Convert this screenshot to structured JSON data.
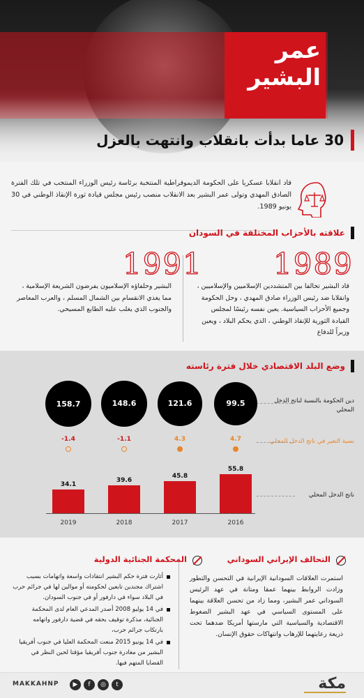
{
  "hero": {
    "name_line1": "عمر",
    "name_line2": "البشير",
    "title": "30 عاما بدأت بانقلاب وانتهت بالعزل"
  },
  "intro": {
    "text": "قاد انقلابا عسكريا على الحكومة الديموقراطية المنتخبة برئاسة رئيس الوزراء المنتخب في تلك الفترة الصادق المهدي وتولى عمر البشير بعد الانقلاب منصب رئيس مجلس قيادة ثورة الإنقاذ الوطني في 30 يونيو 1989."
  },
  "parties": {
    "heading": "علاقته بالأحزاب المختلفة في السودان",
    "y1989": "1989",
    "y1989_text": "قاد البشير تحالفا بين المتشددين الإسلاميين والإسلاميين ، وانقلابا ضد رئيس الوزراء صادق المهدي ، وحل الحكومة وجميع الأحزاب السياسية. يعين نفسه رئيسًا لمجلس القيادة الثورية للإنقاذ الوطني ، الذي يحكم البلاد ، ويعين وزيراً للدفاع",
    "y1991": "1991",
    "y1991_text": "البشير وحلفاؤه الإسلاميون يفرضون الشريعة الإسلامية ، مما يغذي الانقسام بين الشمال المسلم ، والعرب المعاصر والجنوب الذي يغلب عليه الطابع المسيحي."
  },
  "economy": {
    "heading": "وضع البلد الاقتصادي خلال فترة رئاسته",
    "debt_label": "دين الحكومة بالنسبة لناتج الدخل المحلي",
    "change_label": "نسبة التغير في ناتج الدخل المحلي",
    "gdp_label": "ناتج الدخل المحلي"
  },
  "chart_data": {
    "type": "bar",
    "categories": [
      "2019",
      "2018",
      "2017",
      "2016"
    ],
    "series": [
      {
        "name": "دين الحكومة بالنسبة لناتج الدخل المحلي",
        "values": [
          158.7,
          148.6,
          121.6,
          99.5
        ]
      },
      {
        "name": "نسبة التغير في ناتج الدخل المحلي",
        "values": [
          -1.4,
          -1.1,
          4.3,
          4.7
        ]
      },
      {
        "name": "ناتج الدخل المحلي",
        "values": [
          34.1,
          39.6,
          45.8,
          55.8
        ]
      }
    ],
    "debt_labels": [
      "158.7",
      "148.6",
      "121.6",
      "99.5"
    ],
    "change_labels": [
      "-1.4",
      "-1.1",
      "4.3",
      "4.7"
    ],
    "gdp_labels": [
      "34.1",
      "39.6",
      "45.8",
      "55.8"
    ],
    "colors": {
      "bar": "#d0141c",
      "bubble": "#000000",
      "negative": "#d0141c",
      "positive": "#e8862a"
    }
  },
  "alliance": {
    "heading": "التحالف الإيراني السوداني",
    "text": "استمرت العلاقات السودانية الإيرانية في التحسن والتطور وزادت الروابط بينهما عمقا ومتانة في عهد الرئيس السوداني عمر البشير، ومما زاد من تحسن العلاقة بينهما على المستوى السياسي في عهد البشير الضغوط الاقتصادية والسياسية التي مارستها أمريكا ضدهما تحت ذريعة رعايتهما للإرهاب وانتهاكات حقوق الإنسان."
  },
  "icc": {
    "heading": "المحكمة الجنائية الدولية",
    "items": [
      "أثارت فترة حكم البشير انتقادات واسعة واتهامات بسبب اشتراك مجندين تابعين لحكومته أو موالين لها في جرائم حرب في البلاد سواء في دارفور أو في جنوب السودان.",
      "في 14 يوليو 2008 أصدر المدعي العام لدى المحكمة الجنائية، مذكرة توقيف بحقه في قضية دارفور واتهامه بارتكاب جرائم حرب،",
      "في 14 يونيو 2015 منعت المحكمة العليا في جنوب أفريقيا البشير من مغادرة جنوب أفريقيا مؤقتا لحين النظر في القضايا المتهم فيها."
    ]
  },
  "footer": {
    "handle": "MAKKAHNP",
    "logo": "مكة",
    "icons": [
      "youtube-icon",
      "facebook-icon",
      "instagram-icon",
      "twitter-icon"
    ]
  }
}
